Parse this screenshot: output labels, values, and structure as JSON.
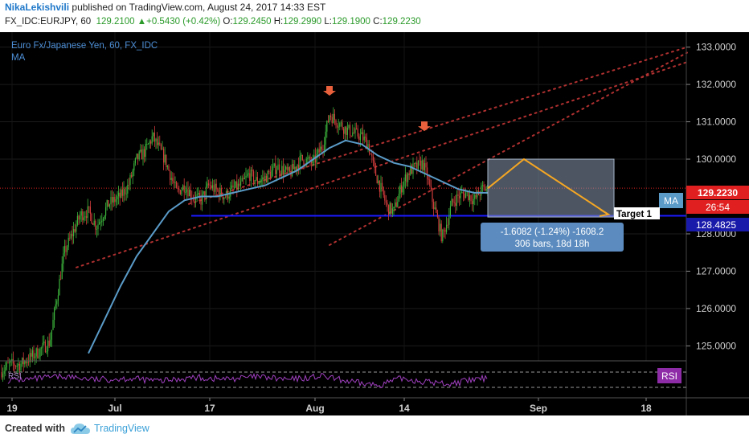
{
  "header": {
    "author": "NikaLekishvili",
    "published_text": "published on TradingView.com, August 24, 2017 14:33 EST",
    "symbol_interval": "FX_IDC:EURJPY, 60",
    "last": "129.2100",
    "change": "+0.5430 (+0.42%)",
    "open_label": "O:",
    "open": "129.2450",
    "high_label": "H:",
    "high": "129.2990",
    "low_label": "L:",
    "low": "129.1900",
    "close_label": "C:",
    "close": "129.2230"
  },
  "chart": {
    "series_title": "Euro Fx/Japanese Yen, 60, FX_IDC",
    "indicator_title": "MA",
    "ma_tag": "MA",
    "target_label": "Target 1",
    "measure_line1": "-1.6082 (-1.24%) -1608.2",
    "measure_line2": "306 bars, 18d 18h",
    "price_tag": "129.2230",
    "countdown_tag": "26:54",
    "level_tag": "128.4825",
    "rsi_label": "RSI",
    "rsi_pane_label": "RSI",
    "colors": {
      "background": "#000000",
      "up": "#3cb43c",
      "down": "#d23c3c",
      "ma": "#5a9bc8",
      "support": "#1a1aff",
      "arrow": "#e8603c",
      "projection": "#f5a623",
      "channel": "#b03030",
      "rsi": "#a040c0",
      "price_tag": "#e02020",
      "level_tag": "#1a1aaa"
    }
  },
  "chart_data": {
    "type": "candlestick",
    "symbol": "FX_IDC:EURJPY",
    "interval": "60",
    "y_axis_ticks": [
      "133.0000",
      "132.0000",
      "131.0000",
      "130.0000",
      "128.0000",
      "127.0000",
      "126.0000",
      "125.0000"
    ],
    "x_axis_ticks": [
      "19",
      "Jul",
      "17",
      "Aug",
      "14",
      "Sep",
      "18"
    ],
    "ylim": [
      124.6,
      133.4
    ],
    "path_x": [
      0,
      12,
      25,
      45,
      62,
      70,
      80,
      90,
      100,
      110,
      120,
      135,
      150,
      160,
      170,
      180,
      190,
      205,
      220,
      230,
      240,
      250,
      260,
      280,
      290,
      300,
      310,
      320,
      330,
      345,
      360,
      375,
      390,
      402,
      410,
      420,
      430,
      440,
      450,
      458,
      466,
      474,
      482,
      490,
      500,
      510,
      520,
      526,
      532,
      538,
      544,
      550,
      556,
      562,
      570,
      580,
      590,
      600,
      607
    ],
    "path_y": [
      124.3,
      124.5,
      124.5,
      124.8,
      125.1,
      126.2,
      127.5,
      128.0,
      128.5,
      128.6,
      128.2,
      128.8,
      129.0,
      129.3,
      130.0,
      130.2,
      130.6,
      130.0,
      129.1,
      129.3,
      129.0,
      128.9,
      129.3,
      129.0,
      129.2,
      129.3,
      129.6,
      129.4,
      129.5,
      129.8,
      129.6,
      130.0,
      129.9,
      130.4,
      131.2,
      131.0,
      130.8,
      130.7,
      130.6,
      130.4,
      129.7,
      129.2,
      128.7,
      128.6,
      129.3,
      129.7,
      129.8,
      129.9,
      129.5,
      128.9,
      128.4,
      127.9,
      128.3,
      128.8,
      129.0,
      129.1,
      128.9,
      129.2,
      129.21
    ],
    "ma_x": [
      110,
      130,
      150,
      170,
      190,
      210,
      230,
      250,
      270,
      290,
      310,
      330,
      350,
      370,
      390,
      410,
      430,
      450,
      470,
      490,
      510,
      530,
      550,
      570,
      590,
      607
    ],
    "ma_y": [
      124.8,
      125.7,
      126.6,
      127.4,
      128.0,
      128.6,
      128.9,
      129.0,
      129.0,
      129.1,
      129.2,
      129.3,
      129.5,
      129.7,
      130.0,
      130.3,
      130.5,
      130.4,
      130.1,
      129.9,
      129.8,
      129.6,
      129.4,
      129.2,
      129.1,
      129.1
    ],
    "support_level": 128.4825,
    "current_price": 129.223,
    "projection": [
      {
        "x": 607,
        "y": 129.22
      },
      {
        "x": 652,
        "y": 130.0
      },
      {
        "x": 757,
        "y": 128.52
      }
    ],
    "measure_box": {
      "x0": 607,
      "x1": 764,
      "y0": 130.0,
      "y1": 128.45
    },
    "peak_markers": [
      {
        "x": 410,
        "y": 131.7
      },
      {
        "x": 528,
        "y": 130.75
      }
    ],
    "channel_upper": {
      "x0": 235,
      "y0": 128.8,
      "x1": 855,
      "y1": 133.0
    },
    "channel_lower": {
      "x0": 95,
      "y0": 127.1,
      "x1": 855,
      "y1": 132.6
    },
    "channel_mid": {
      "x0": 410,
      "y0": 127.7,
      "x1": 855,
      "y1": 132.85
    },
    "rsi_x": [
      10,
      40,
      80,
      120,
      160,
      200,
      240,
      280,
      320,
      360,
      400,
      440,
      470,
      500,
      530,
      560,
      590,
      607
    ],
    "rsi_y": [
      48,
      52,
      62,
      50,
      55,
      45,
      58,
      52,
      60,
      50,
      62,
      40,
      30,
      55,
      42,
      35,
      50,
      55
    ]
  }
}
